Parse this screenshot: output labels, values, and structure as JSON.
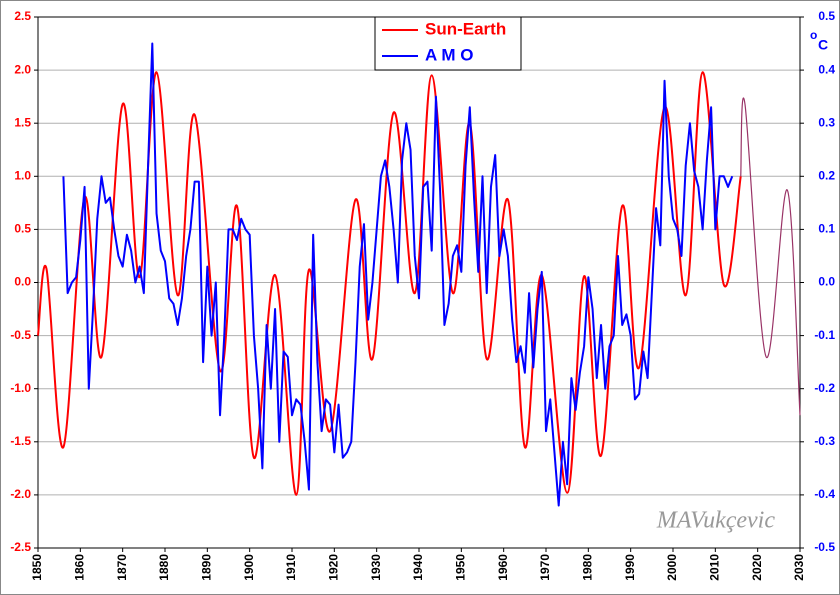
{
  "chart_data": {
    "type": "line",
    "signature": "MAVukçevic",
    "y2label": {
      "sup": "o",
      "text": "C"
    },
    "xlim": [
      1850,
      2030
    ],
    "xticks": [
      1850,
      1860,
      1870,
      1880,
      1890,
      1900,
      1910,
      1920,
      1930,
      1940,
      1950,
      1960,
      1970,
      1980,
      1990,
      2000,
      2010,
      2020,
      2030
    ],
    "ylim": [
      -2.5,
      2.5
    ],
    "yticks": [
      2.5,
      {
        "value": 2,
        "label": "2.0"
      },
      1.5,
      {
        "value": 1,
        "label": "1.0"
      },
      0.5,
      {
        "value": 0,
        "label": "0.0"
      },
      -0.5,
      {
        "value": -1,
        "label": "-1.0"
      },
      -1.5,
      {
        "value": -2,
        "label": "-2.0"
      },
      -2.5
    ],
    "y2lim": [
      -0.5,
      0.5
    ],
    "y2ticks": [
      0.5,
      0.4,
      0.3,
      0.2,
      0.1,
      {
        "value": 0,
        "label": "0.0"
      },
      -0.1,
      -0.2,
      -0.3,
      -0.4,
      -0.5
    ],
    "grid": true,
    "series": [
      {
        "name": "Sun-Earth",
        "color": "#ff0000",
        "smooth": true,
        "x": [
          1850,
          1852,
          1856,
          1861,
          1865,
          1870,
          1874,
          1878,
          1883,
          1887,
          1893,
          1897,
          1901,
          1906,
          1911,
          1914,
          1919,
          1925,
          1929,
          1934,
          1939,
          1943,
          1948,
          1952,
          1956,
          1961,
          1965,
          1969,
          1975,
          1979,
          1983,
          1988,
          1992,
          1998,
          2003,
          2007,
          2012,
          2016
        ],
        "values": [
          -0.5,
          0.13,
          -1.55,
          0.8,
          -0.7,
          1.68,
          0.05,
          1.98,
          -0.12,
          1.58,
          -0.83,
          0.72,
          -1.65,
          0.07,
          -2.0,
          0.12,
          -1.4,
          0.78,
          -0.72,
          1.6,
          -0.1,
          1.95,
          -0.1,
          1.5,
          -0.72,
          0.78,
          -1.55,
          0.07,
          -1.98,
          0.06,
          -1.63,
          0.72,
          -0.8,
          1.65,
          -0.12,
          1.98,
          -0.02,
          1.0
        ]
      },
      {
        "name": "A M O",
        "color": "#0000ff",
        "axis": "y2",
        "x": [
          1856,
          1857,
          1858,
          1859,
          1860,
          1861,
          1862,
          1863,
          1864,
          1865,
          1866,
          1867,
          1868,
          1869,
          1870,
          1871,
          1872,
          1873,
          1874,
          1875,
          1876,
          1877,
          1878,
          1879,
          1880,
          1881,
          1882,
          1883,
          1884,
          1885,
          1886,
          1887,
          1888,
          1889,
          1890,
          1891,
          1892,
          1893,
          1894,
          1895,
          1896,
          1897,
          1898,
          1899,
          1900,
          1901,
          1902,
          1903,
          1904,
          1905,
          1906,
          1907,
          1908,
          1909,
          1910,
          1911,
          1912,
          1913,
          1914,
          1915,
          1916,
          1917,
          1918,
          1919,
          1920,
          1921,
          1922,
          1923,
          1924,
          1925,
          1926,
          1927,
          1928,
          1929,
          1930,
          1931,
          1932,
          1933,
          1934,
          1935,
          1936,
          1937,
          1938,
          1939,
          1940,
          1941,
          1942,
          1943,
          1944,
          1945,
          1946,
          1947,
          1948,
          1949,
          1950,
          1951,
          1952,
          1953,
          1954,
          1955,
          1956,
          1957,
          1958,
          1959,
          1960,
          1961,
          1962,
          1963,
          1964,
          1965,
          1966,
          1967,
          1968,
          1969,
          1970,
          1971,
          1972,
          1973,
          1974,
          1975,
          1976,
          1977,
          1978,
          1979,
          1980,
          1981,
          1982,
          1983,
          1984,
          1985,
          1986,
          1987,
          1988,
          1989,
          1990,
          1991,
          1992,
          1993,
          1994,
          1995,
          1996,
          1997,
          1998,
          1999,
          2000,
          2001,
          2002,
          2003,
          2004,
          2005,
          2006,
          2007,
          2008,
          2009,
          2010,
          2011,
          2012,
          2013,
          2014
        ],
        "values": [
          0.2,
          -0.02,
          0.0,
          0.01,
          0.08,
          0.18,
          -0.2,
          -0.05,
          0.12,
          0.2,
          0.15,
          0.16,
          0.1,
          0.05,
          0.03,
          0.09,
          0.06,
          0.0,
          0.03,
          -0.02,
          0.22,
          0.45,
          0.13,
          0.06,
          0.04,
          -0.03,
          -0.04,
          -0.08,
          -0.03,
          0.05,
          0.1,
          0.19,
          0.19,
          -0.15,
          0.03,
          -0.1,
          0.0,
          -0.25,
          -0.1,
          0.1,
          0.1,
          0.08,
          0.12,
          0.1,
          0.09,
          -0.1,
          -0.2,
          -0.35,
          -0.08,
          -0.2,
          -0.05,
          -0.3,
          -0.13,
          -0.14,
          -0.25,
          -0.22,
          -0.23,
          -0.3,
          -0.39,
          0.09,
          -0.15,
          -0.28,
          -0.22,
          -0.23,
          -0.32,
          -0.23,
          -0.33,
          -0.32,
          -0.3,
          -0.15,
          0.03,
          0.11,
          -0.07,
          0.0,
          0.1,
          0.2,
          0.23,
          0.18,
          0.1,
          0.0,
          0.23,
          0.3,
          0.25,
          0.05,
          -0.03,
          0.18,
          0.19,
          0.06,
          0.35,
          0.17,
          -0.08,
          -0.04,
          0.05,
          0.07,
          0.02,
          0.22,
          0.33,
          0.16,
          0.02,
          0.2,
          -0.02,
          0.18,
          0.24,
          0.05,
          0.1,
          0.05,
          -0.07,
          -0.15,
          -0.12,
          -0.17,
          -0.02,
          -0.16,
          -0.05,
          0.02,
          -0.28,
          -0.22,
          -0.32,
          -0.42,
          -0.3,
          -0.38,
          -0.18,
          -0.24,
          -0.17,
          -0.12,
          0.01,
          -0.05,
          -0.18,
          -0.08,
          -0.2,
          -0.12,
          -0.1,
          0.05,
          -0.08,
          -0.06,
          -0.1,
          -0.22,
          -0.21,
          -0.13,
          -0.18,
          -0.02,
          0.14,
          0.07,
          0.38,
          0.2,
          0.12,
          0.1,
          0.05,
          0.22,
          0.3,
          0.21,
          0.18,
          0.1,
          0.23,
          0.33,
          0.1,
          0.2,
          0.2,
          0.18,
          0.2
        ]
      },
      {
        "color": "#993366",
        "smooth": true,
        "thin": true,
        "x": [
          2016,
          2017,
          2022,
          2027,
          2030
        ],
        "values": [
          1.0,
          1.68,
          -0.7,
          0.87,
          -1.25
        ]
      }
    ]
  }
}
